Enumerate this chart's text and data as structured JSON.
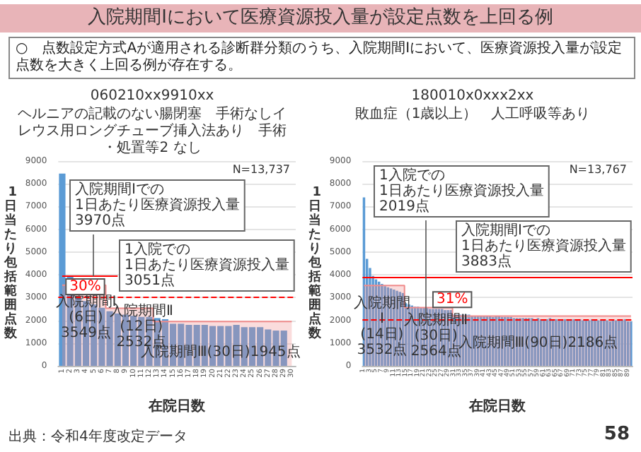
{
  "chart_data": [
    {
      "type": "other",
      "title": "入院期間Ⅰにおいて医療資源投入量が設定点数を上回る例",
      "annotations": [
        "○　点数設定方式Aが適用される診断群分類のうち、入院期間Ⅰにおいて、医療資源投入量が設定点数を大きく上回る例が存在する。",
        "出典：令和4年度改定データ",
        "58"
      ]
    },
    {
      "type": "bar",
      "title": "060210xx9910xx",
      "subtitle": "ヘルニアの記載のない腸閉塞　手術なしイレウス用ロングチューブ挿入法あり　手術・処置等2 なし",
      "xlabel": "在院日数",
      "ylabel": "1日当たり包括範囲点数",
      "categories": [
        "1",
        "2",
        "3",
        "4",
        "5",
        "6",
        "7",
        "8",
        "9",
        "10",
        "11",
        "12",
        "13",
        "14",
        "15",
        "16",
        "17",
        "18",
        "19",
        "20",
        "21",
        "22",
        "23",
        "24",
        "25",
        "26",
        "27",
        "28",
        "29",
        "30"
      ],
      "series": [
        {
          "type": "bar",
          "color": "#5b9bd5",
          "values": [
            8450,
            3950,
            3050,
            2850,
            2700,
            2550,
            2400,
            2300,
            2250,
            2200,
            2150,
            2150,
            2100,
            2050,
            1850,
            1850,
            1800,
            1800,
            1800,
            1750,
            1750,
            1750,
            1800,
            1700,
            1700,
            1700,
            1600,
            1550,
            1550,
            null
          ]
        },
        {
          "type": "step",
          "color": "#f08c8c",
          "values": [
            3549,
            3549,
            3549,
            3549,
            3549,
            3549,
            2532,
            2532,
            2532,
            2532,
            2532,
            2532,
            1945,
            1945,
            1945,
            1945,
            1945,
            1945,
            1945,
            1945,
            1945,
            1945,
            1945,
            1945,
            1945,
            1945,
            1945,
            1945,
            1945,
            1945
          ]
        }
      ],
      "ylim": [
        0,
        9000
      ],
      "yticks": [
        0,
        1000,
        2000,
        3000,
        4000,
        5000,
        6000,
        7000,
        8000,
        9000
      ],
      "grid": "y",
      "ref_lines": [
        {
          "axis": "y",
          "value": 3970,
          "label": "入院期間Ⅰでの\n1日あたり医療資源投入量\n3970点",
          "color": "#ff0000",
          "line_style": "solid"
        },
        {
          "axis": "y",
          "value": 3051,
          "label": "1入院での\n1日あたり医療資源投入量\n3051点",
          "color": "#ff0000",
          "line_style": "dashed"
        }
      ],
      "annotations": [
        "N=13,737",
        "30%",
        {
          "text": "入院期間Ⅰ\n(6日)\n3549点",
          "x": "4",
          "y": 2100
        },
        {
          "text": "入院期間Ⅱ\n(12日)\n2532点",
          "x": "11",
          "y": 1700
        },
        {
          "text": "入院期間Ⅲ(30日)1945点",
          "x": "21",
          "y": 600
        }
      ]
    },
    {
      "type": "bar",
      "title": "180010x0xxx2xx",
      "subtitle": "敗血症（1歳以上）　人工呼吸等あり",
      "xlabel": "在院日数",
      "ylabel": "1日当たり包括範囲点数",
      "categories": [
        "1",
        null,
        "3",
        null,
        "5",
        null,
        "7",
        null,
        "9",
        null,
        "11",
        null,
        "13",
        null,
        "15",
        null,
        "17",
        null,
        "19",
        null,
        "21",
        null,
        "23",
        null,
        "25",
        null,
        "27",
        null,
        "29",
        null,
        "31",
        null,
        "33",
        null,
        "35",
        null,
        "37",
        null,
        "39",
        null,
        "41",
        null,
        "43",
        null,
        "45",
        null,
        "47",
        null,
        "49",
        null,
        "51",
        null,
        "53",
        null,
        "55",
        null,
        "57",
        null,
        "59",
        null,
        "61",
        null,
        "63",
        null,
        "65",
        null,
        "67",
        null,
        "69",
        null,
        "71",
        null,
        "73",
        null,
        "75",
        null,
        "77",
        null,
        "79",
        null,
        "81",
        null,
        "83",
        null,
        "85",
        null,
        "87",
        null,
        "89",
        null
      ],
      "series": [
        {
          "type": "bar",
          "color": "#5b9bd5",
          "values": [
            7400,
            4700,
            4300,
            3950,
            3800,
            3700,
            3600,
            3500,
            3450,
            3400,
            3350,
            3300,
            3250,
            3200,
            2750,
            2700,
            2650,
            2600,
            2600,
            2550,
            2550,
            2550,
            2500,
            2500,
            2500,
            2500,
            2500,
            2450,
            2450,
            2450,
            2250,
            2250,
            2250,
            2250,
            2250,
            2250,
            2200,
            2200,
            2200,
            2200,
            2200,
            2200,
            2200,
            2150,
            2200,
            2200,
            2150,
            2150,
            2150,
            2150,
            2100,
            2100,
            2100,
            2100,
            2100,
            2100,
            2100,
            2050,
            2100,
            2050,
            2050,
            2050,
            2100,
            2050,
            2050,
            2050,
            2050,
            2050,
            2050,
            2050,
            2050,
            2000,
            2050,
            2000,
            2000,
            2000,
            2050,
            2000,
            2000,
            2000,
            2000,
            2000,
            1950,
            2000,
            2000,
            2050,
            2000,
            2050,
            1950,
            1950
          ]
        },
        {
          "type": "step",
          "color": "#f08c8c",
          "values": [
            3532,
            3532,
            3532,
            3532,
            3532,
            3532,
            3532,
            3532,
            3532,
            3532,
            3532,
            3532,
            3532,
            3532,
            2564,
            2564,
            2564,
            2564,
            2564,
            2564,
            2564,
            2564,
            2564,
            2564,
            2564,
            2564,
            2564,
            2564,
            2564,
            2564,
            2186,
            2186,
            2186,
            2186,
            2186,
            2186,
            2186,
            2186,
            2186,
            2186,
            2186,
            2186,
            2186,
            2186,
            2186,
            2186,
            2186,
            2186,
            2186,
            2186,
            2186,
            2186,
            2186,
            2186,
            2186,
            2186,
            2186,
            2186,
            2186,
            2186,
            2186,
            2186,
            2186,
            2186,
            2186,
            2186,
            2186,
            2186,
            2186,
            2186,
            2186,
            2186,
            2186,
            2186,
            2186,
            2186,
            2186,
            2186,
            2186,
            2186,
            2186,
            2186,
            2186,
            2186,
            2186,
            2186,
            2186,
            2186,
            2186,
            2186
          ]
        }
      ],
      "ylim": [
        0,
        9000
      ],
      "yticks": [
        0,
        1000,
        2000,
        3000,
        4000,
        5000,
        6000,
        7000,
        8000,
        9000
      ],
      "grid": "y",
      "ref_lines": [
        {
          "axis": "y",
          "value": 3883,
          "label": "入院期間Ⅰでの\n1日あたり医療資源投入量\n3883点",
          "color": "#ff0000",
          "line_style": "solid"
        },
        {
          "axis": "y",
          "value": 2019,
          "label": "1入院での\n1日あたり医療資源投入量\n2019点",
          "color": "#ff0000",
          "line_style": "dashed"
        }
      ],
      "annotations": [
        "N=13,767",
        "31%",
        {
          "text": "入院期間\nⅠ\n(14日)\n3532点",
          "x": "7",
          "y": 1700
        },
        {
          "text": "入院期間Ⅱ\n(30日)\n2564点",
          "x": "25",
          "y": 1300
        },
        {
          "text": "入院期間Ⅲ(90日)2186点",
          "x": "59",
          "y": 1000
        }
      ]
    }
  ]
}
